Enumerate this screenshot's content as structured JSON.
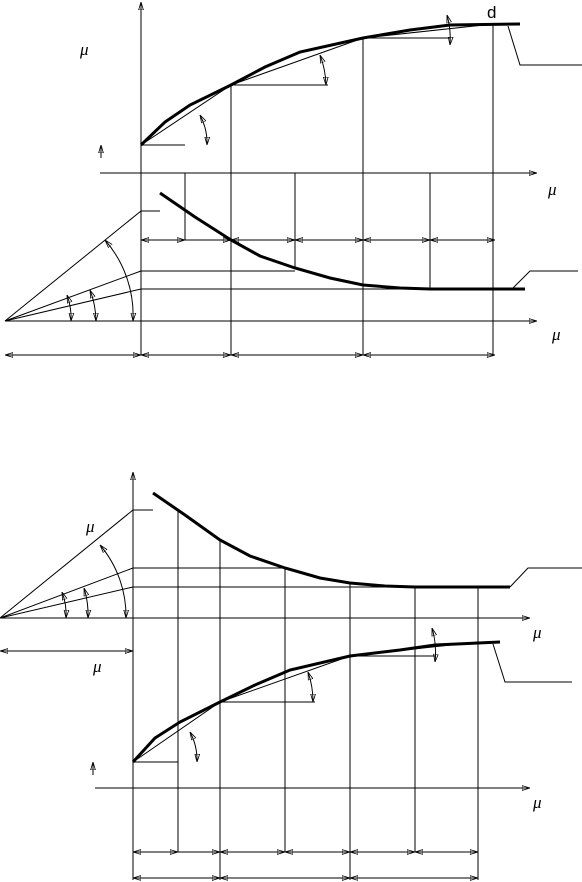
{
  "labels": [
    "μ",
    "d",
    "μ",
    "μ",
    "μ",
    "μ",
    "μ",
    "μ"
  ]
}
